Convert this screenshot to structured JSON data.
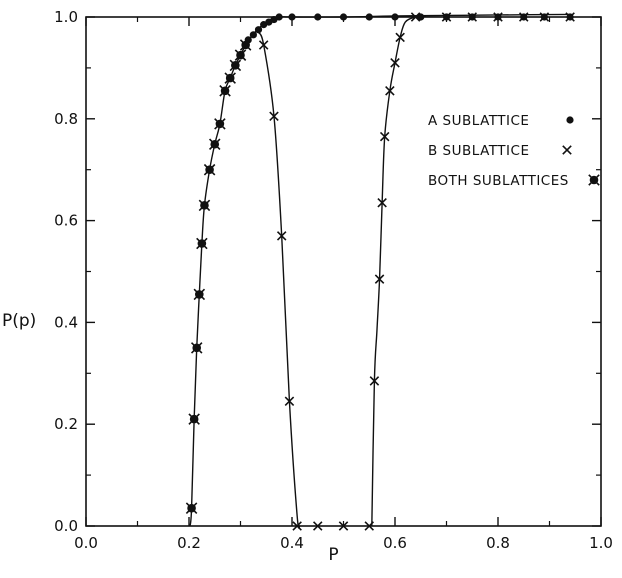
{
  "chart_data": {
    "type": "scatter",
    "xlabel": "P",
    "ylabel": "P(p)",
    "xlim": [
      0.0,
      1.0
    ],
    "ylim": [
      0.0,
      1.0
    ],
    "xticks": [
      0.0,
      0.2,
      0.4,
      0.6,
      0.8,
      1.0
    ],
    "yticks": [
      0.0,
      0.2,
      0.4,
      0.6,
      0.8,
      1.0
    ],
    "xtick_labels": [
      "0.0",
      "0.2",
      "0.4",
      "0.6",
      "0.8",
      "1.0"
    ],
    "ytick_labels": [
      "0.0",
      "0.2",
      "0.4",
      "0.6",
      "0.8",
      "1.0"
    ],
    "grid": false,
    "legend_position": "right",
    "series": [
      {
        "name": "A SUBLATTICE",
        "marker": "dot",
        "x": [
          0.315,
          0.325,
          0.335,
          0.345,
          0.355,
          0.365,
          0.375,
          0.4,
          0.45,
          0.5,
          0.55,
          0.6,
          0.65,
          0.7,
          0.75,
          0.8,
          0.85,
          0.89,
          0.94
        ],
        "y": [
          0.955,
          0.965,
          0.975,
          0.985,
          0.99,
          0.995,
          1.0,
          1.0,
          1.0,
          1.0,
          1.0,
          1.0,
          1.0,
          1.0,
          1.0,
          1.0,
          1.0,
          1.0,
          1.0
        ]
      },
      {
        "name": "B SUBLATTICE",
        "marker": "x",
        "x": [
          0.345,
          0.365,
          0.38,
          0.395,
          0.41,
          0.45,
          0.5,
          0.55,
          0.56,
          0.57,
          0.575,
          0.58,
          0.59,
          0.6,
          0.61,
          0.64,
          0.7,
          0.75,
          0.8,
          0.85,
          0.89,
          0.94
        ],
        "y": [
          0.945,
          0.805,
          0.57,
          0.245,
          0.0,
          0.0,
          0.0,
          0.0,
          0.285,
          0.485,
          0.635,
          0.765,
          0.855,
          0.91,
          0.96,
          1.0,
          1.0,
          1.0,
          1.0,
          1.0,
          1.0,
          1.0
        ]
      },
      {
        "name": "BOTH SUBLATTICES",
        "marker": "both",
        "x": [
          0.205,
          0.21,
          0.215,
          0.22,
          0.225,
          0.23,
          0.24,
          0.25,
          0.26,
          0.27,
          0.28,
          0.29,
          0.3,
          0.31
        ],
        "y": [
          0.035,
          0.21,
          0.35,
          0.455,
          0.555,
          0.63,
          0.7,
          0.75,
          0.79,
          0.855,
          0.88,
          0.905,
          0.925,
          0.945
        ]
      }
    ],
    "curves": [
      {
        "name": "rising curve",
        "x": [
          0.202,
          0.205,
          0.21,
          0.215,
          0.22,
          0.225,
          0.23,
          0.24,
          0.25,
          0.26,
          0.27,
          0.28,
          0.29,
          0.3,
          0.31,
          0.32,
          0.33,
          0.34,
          0.35,
          0.36,
          0.38,
          0.4,
          0.5,
          0.6,
          0.7,
          0.8,
          0.94
        ],
        "y": [
          0.0,
          0.035,
          0.21,
          0.35,
          0.455,
          0.555,
          0.63,
          0.7,
          0.75,
          0.79,
          0.855,
          0.88,
          0.905,
          0.925,
          0.945,
          0.96,
          0.972,
          0.982,
          0.99,
          0.995,
          1.0,
          1.0,
          1.0,
          1.002,
          1.003,
          1.004,
          1.005
        ]
      },
      {
        "name": "falling curve",
        "x": [
          0.335,
          0.345,
          0.365,
          0.38,
          0.395,
          0.41,
          0.415
        ],
        "y": [
          0.97,
          0.945,
          0.805,
          0.57,
          0.245,
          0.02,
          0.0
        ]
      },
      {
        "name": "second rising curve",
        "x": [
          0.555,
          0.56,
          0.565,
          0.57,
          0.575,
          0.58,
          0.59,
          0.6,
          0.61,
          0.62,
          0.64,
          0.66
        ],
        "y": [
          0.0,
          0.285,
          0.385,
          0.485,
          0.635,
          0.765,
          0.855,
          0.91,
          0.96,
          0.99,
          1.0,
          1.002
        ]
      }
    ]
  }
}
